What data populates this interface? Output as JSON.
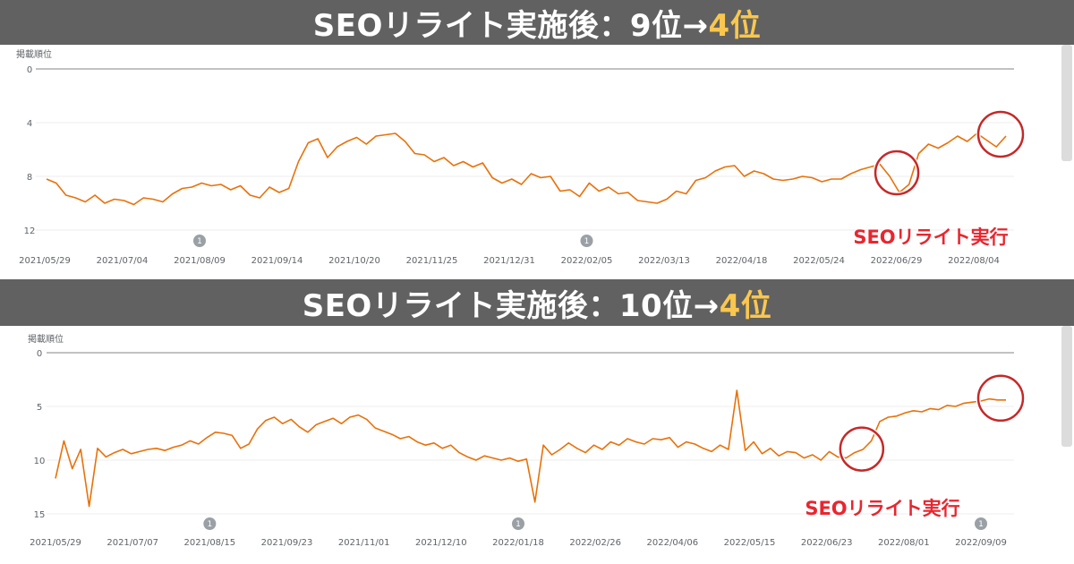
{
  "banners": [
    {
      "prefix": "SEOリライト実施後：9位→",
      "highlight": "4位"
    },
    {
      "prefix": "SEOリライト実施後：10位→",
      "highlight": "4位"
    }
  ],
  "colors": {
    "line": "#e8710a",
    "annotation": "#e8262f",
    "banner_bg": "#616161",
    "highlight": "#f9c74f",
    "marker": "#9aa0a6"
  },
  "chart_data": [
    {
      "type": "line",
      "ylabel": "掲載順位",
      "y_ticks": [
        0,
        4,
        8,
        12
      ],
      "ylim": [
        0,
        12
      ],
      "y_inverted": true,
      "x_tick_labels": [
        "2021/05/29",
        "2021/07/04",
        "2021/08/09",
        "2021/09/14",
        "2021/10/20",
        "2021/11/25",
        "2021/12/31",
        "2022/02/05",
        "2022/03/13",
        "2022/04/18",
        "2022/05/24",
        "2022/06/29",
        "2022/08/04"
      ],
      "markers": [
        {
          "label": "1",
          "date": "2021/08/09"
        },
        {
          "label": "1",
          "date": "2022/02/05"
        }
      ],
      "annotation": "SEOリライト実行",
      "series": [
        {
          "values": [
            8.2,
            8.5,
            9.4,
            9.6,
            9.9,
            9.4,
            10.0,
            9.7,
            9.8,
            10.1,
            9.6,
            9.7,
            9.9,
            9.3,
            8.9,
            8.8,
            8.5,
            8.7,
            8.6,
            9.0,
            8.7,
            9.4,
            9.6,
            8.8,
            9.2,
            8.9,
            6.9,
            5.5,
            5.2,
            6.6,
            5.8,
            5.4,
            5.1,
            5.6,
            5.0,
            4.9,
            4.8,
            5.4,
            6.3,
            6.4,
            6.9,
            6.6,
            7.2,
            6.9,
            7.3,
            7.0,
            8.1,
            8.5,
            8.2,
            8.6,
            7.8,
            8.1,
            8.0,
            9.1,
            9.0,
            9.5,
            8.5,
            9.1,
            8.8,
            9.3,
            9.2,
            9.8,
            9.9,
            10.0,
            9.7,
            9.1,
            9.3,
            8.3,
            8.1,
            7.6,
            7.3,
            7.2,
            8.0,
            7.6,
            7.8,
            8.2,
            8.3,
            8.2,
            8.0,
            8.1,
            8.4,
            8.2,
            8.2,
            7.8,
            7.5,
            7.3,
            7.1,
            8.0,
            9.2,
            8.6,
            6.3,
            5.6,
            5.9,
            5.5,
            5.0,
            5.4,
            4.8,
            5.3,
            5.8,
            5.0
          ]
        }
      ]
    },
    {
      "type": "line",
      "ylabel": "掲載順位",
      "y_ticks": [
        0,
        5,
        10,
        15
      ],
      "ylim": [
        0,
        15
      ],
      "y_inverted": true,
      "x_tick_labels": [
        "2021/05/29",
        "2021/07/07",
        "2021/08/15",
        "2021/09/23",
        "2021/11/01",
        "2021/12/10",
        "2022/01/18",
        "2022/02/26",
        "2022/04/06",
        "2022/05/15",
        "2022/06/23",
        "2022/08/01",
        "2022/09/09"
      ],
      "markers": [
        {
          "label": "1",
          "date": "2021/08/15"
        },
        {
          "label": "1",
          "date": "2022/01/18"
        },
        {
          "label": "1",
          "date": "2022/09/09"
        }
      ],
      "annotation": "SEOリライト実行",
      "series": [
        {
          "values": [
            11.7,
            8.2,
            10.8,
            9.0,
            14.3,
            8.9,
            9.7,
            9.3,
            9.0,
            9.4,
            9.2,
            9.0,
            8.9,
            9.1,
            8.8,
            8.6,
            8.2,
            8.5,
            7.9,
            7.4,
            7.5,
            7.7,
            8.9,
            8.5,
            7.1,
            6.3,
            6.0,
            6.6,
            6.2,
            6.9,
            7.4,
            6.7,
            6.4,
            6.1,
            6.6,
            6.0,
            5.8,
            6.2,
            7.0,
            7.3,
            7.6,
            8.0,
            7.8,
            8.3,
            8.6,
            8.4,
            8.9,
            8.6,
            9.3,
            9.7,
            10.0,
            9.6,
            9.8,
            10.0,
            9.8,
            10.1,
            9.9,
            13.9,
            8.6,
            9.5,
            9.0,
            8.4,
            8.9,
            9.3,
            8.6,
            9.0,
            8.3,
            8.6,
            8.0,
            8.3,
            8.5,
            8.0,
            8.1,
            7.9,
            8.8,
            8.3,
            8.5,
            8.9,
            9.2,
            8.6,
            9.0,
            3.5,
            9.1,
            8.3,
            9.4,
            8.9,
            9.6,
            9.2,
            9.3,
            9.8,
            9.5,
            10.0,
            9.2,
            9.7,
            9.8,
            9.3,
            9.0,
            8.2,
            6.4,
            6.0,
            5.9,
            5.6,
            5.4,
            5.5,
            5.2,
            5.3,
            4.9,
            5.0,
            4.7,
            4.6,
            4.5,
            4.3,
            4.4,
            4.4
          ]
        }
      ]
    }
  ]
}
